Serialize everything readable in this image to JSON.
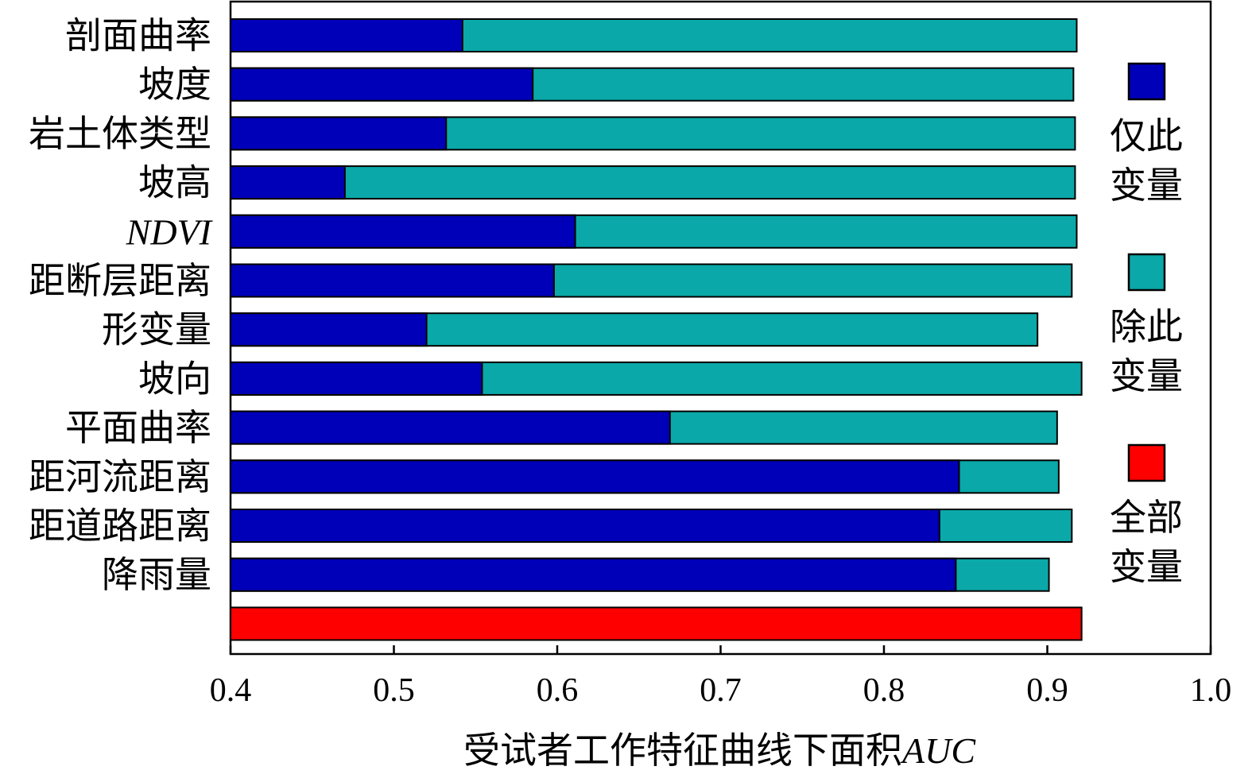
{
  "chart_data": {
    "type": "bar",
    "orientation": "horizontal",
    "categories": [
      "剖面曲率",
      "坡度",
      "岩土体类型",
      "坡高",
      "NDVI",
      "距断层距离",
      "形变量",
      "坡向",
      "平面曲率",
      "距河流距离",
      "距道路距离",
      "降雨量",
      ""
    ],
    "italic_categories": [
      "NDVI"
    ],
    "series": [
      {
        "name": "仅此变量",
        "color": "#0000B8",
        "values": [
          0.542,
          0.585,
          0.532,
          0.47,
          0.611,
          0.598,
          0.52,
          0.554,
          0.669,
          0.846,
          0.834,
          0.844,
          null
        ]
      },
      {
        "name": "除此变量",
        "color": "#0AA8A8",
        "values": [
          0.918,
          0.916,
          0.917,
          0.917,
          0.918,
          0.915,
          0.894,
          0.921,
          0.906,
          0.907,
          0.915,
          0.901,
          null
        ]
      },
      {
        "name": "全部变量",
        "color": "#FF0000",
        "values": [
          null,
          null,
          null,
          null,
          null,
          null,
          null,
          null,
          null,
          null,
          null,
          null,
          0.921
        ]
      }
    ],
    "xlim": [
      0.4,
      1.0
    ],
    "xticks": [
      "0.4",
      "0.5",
      "0.6",
      "0.7",
      "0.8",
      "0.9",
      "1.0"
    ],
    "xlabel": {
      "text": "受试者工作特征曲线下面积",
      "italic_suffix": "AUC"
    },
    "ylabel": "",
    "grid": false,
    "legend_position": "right",
    "legend_labels": [
      {
        "line1": "仅此",
        "line2": "变量",
        "color": "#0000B8"
      },
      {
        "line1": "除此",
        "line2": "变量",
        "color": "#0AA8A8"
      },
      {
        "line1": "全部",
        "line2": "变量",
        "color": "#FF0000"
      }
    ]
  }
}
